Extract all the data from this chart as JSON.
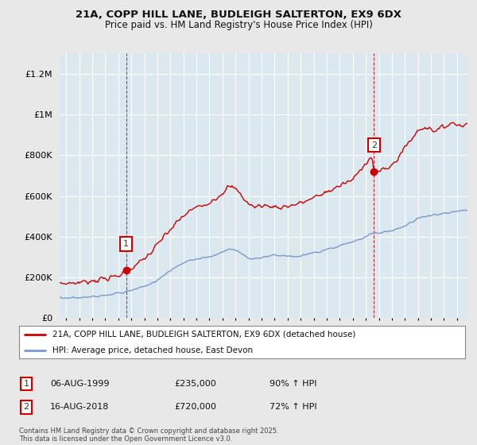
{
  "title_line1": "21A, COPP HILL LANE, BUDLEIGH SALTERTON, EX9 6DX",
  "title_line2": "Price paid vs. HM Land Registry's House Price Index (HPI)",
  "bg_color": "#e8e8e8",
  "plot_bg_color": "#dce8f0",
  "red_line_color": "#cc0000",
  "blue_line_color": "#7799cc",
  "grid_color": "#ffffff",
  "sale1_date_num": 1999.6,
  "sale1_price": 235000,
  "sale1_label": "1",
  "sale2_date_num": 2018.62,
  "sale2_price": 720000,
  "sale2_label": "2",
  "legend_entries": [
    "21A, COPP HILL LANE, BUDLEIGH SALTERTON, EX9 6DX (detached house)",
    "HPI: Average price, detached house, East Devon"
  ],
  "table_rows": [
    [
      "1",
      "06-AUG-1999",
      "£235,000",
      "90% ↑ HPI"
    ],
    [
      "2",
      "16-AUG-2018",
      "£720,000",
      "72% ↑ HPI"
    ]
  ],
  "footer_text": "Contains HM Land Registry data © Crown copyright and database right 2025.\nThis data is licensed under the Open Government Licence v3.0.",
  "ylim": [
    0,
    1300000
  ],
  "xlim_start": 1994.5,
  "xlim_end": 2025.8,
  "yticks": [
    0,
    200000,
    400000,
    600000,
    800000,
    1000000,
    1200000
  ],
  "ytick_labels": [
    "£0",
    "£200K",
    "£400K",
    "£600K",
    "£800K",
    "£1M",
    "£1.2M"
  ]
}
